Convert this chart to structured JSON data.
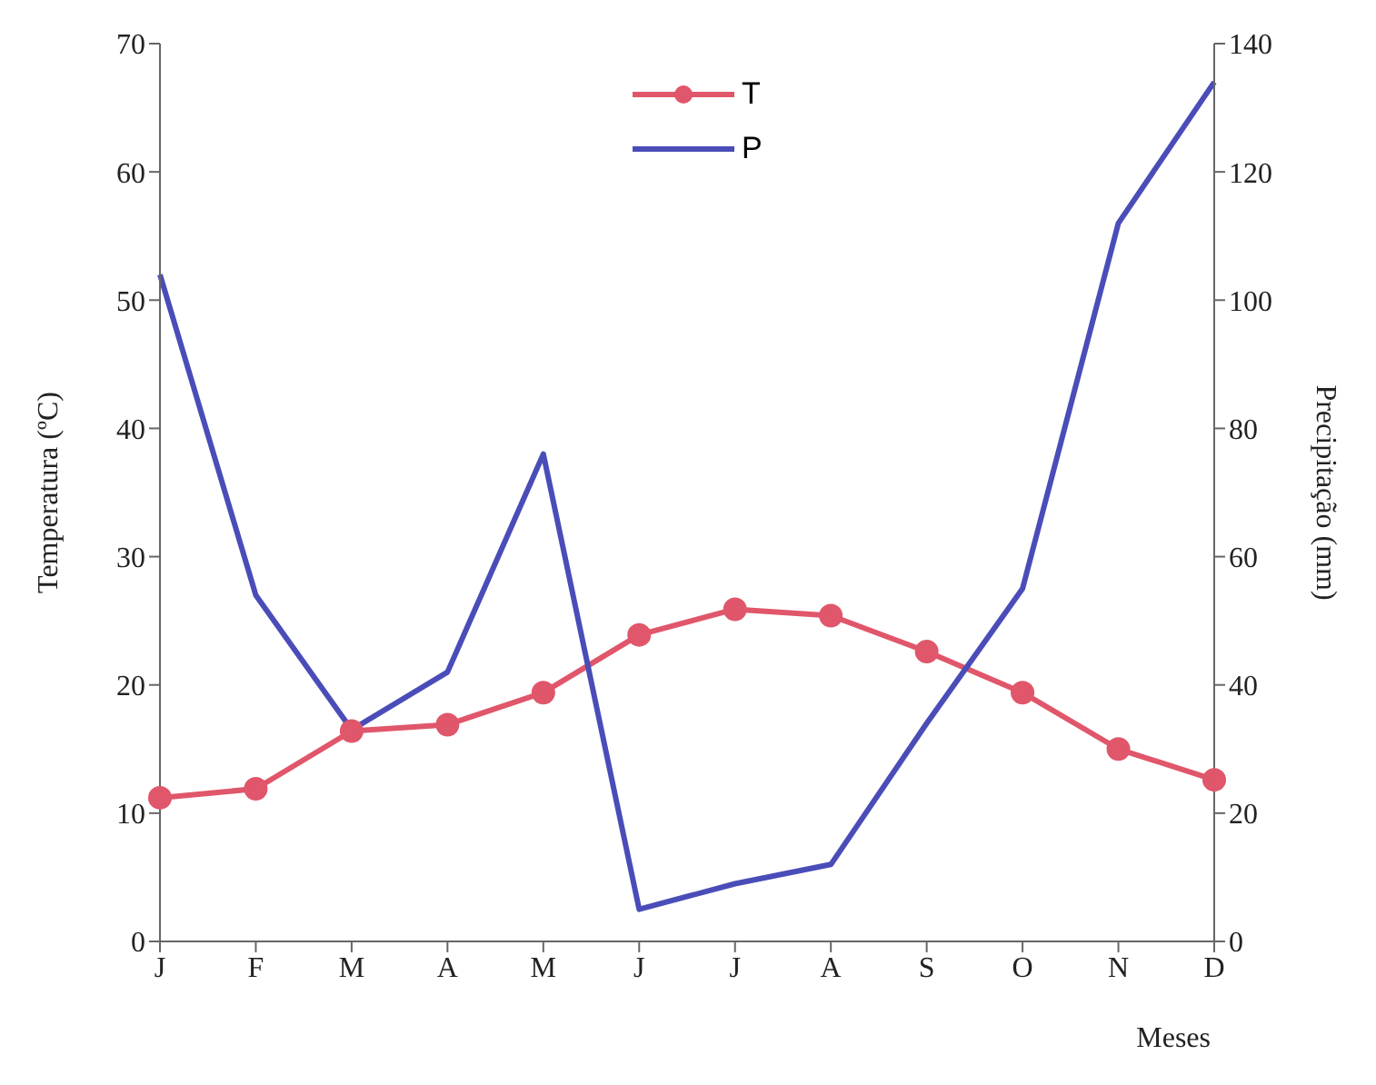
{
  "chart_data": {
    "type": "line",
    "xlabel": "Meses",
    "ylabel": "Temperatura (ºC)",
    "y2label": "Precipitação (mm)",
    "categories": [
      "J",
      "F",
      "M",
      "A",
      "M",
      "J",
      "J",
      "A",
      "S",
      "O",
      "N",
      "D"
    ],
    "series": [
      {
        "name": "T",
        "color": "#e0566a",
        "marker": "circle",
        "values": [
          11.2,
          11.9,
          16.4,
          16.9,
          19.4,
          23.9,
          25.9,
          25.4,
          22.6,
          19.4,
          15.0,
          12.6
        ]
      },
      {
        "name": "P",
        "color": "#4a4db8",
        "marker": "none",
        "axis": "y2",
        "values": [
          104,
          54,
          33,
          42,
          76,
          5,
          9,
          12,
          34,
          55,
          112,
          134
        ]
      }
    ],
    "ylim": [
      0,
      70
    ],
    "yticks": [
      0,
      10,
      20,
      30,
      40,
      50,
      60,
      70
    ],
    "y2lim": [
      0,
      140
    ],
    "y2ticks": [
      0,
      20,
      40,
      60,
      80,
      100,
      120,
      140
    ],
    "grid": false,
    "legend": "top"
  }
}
